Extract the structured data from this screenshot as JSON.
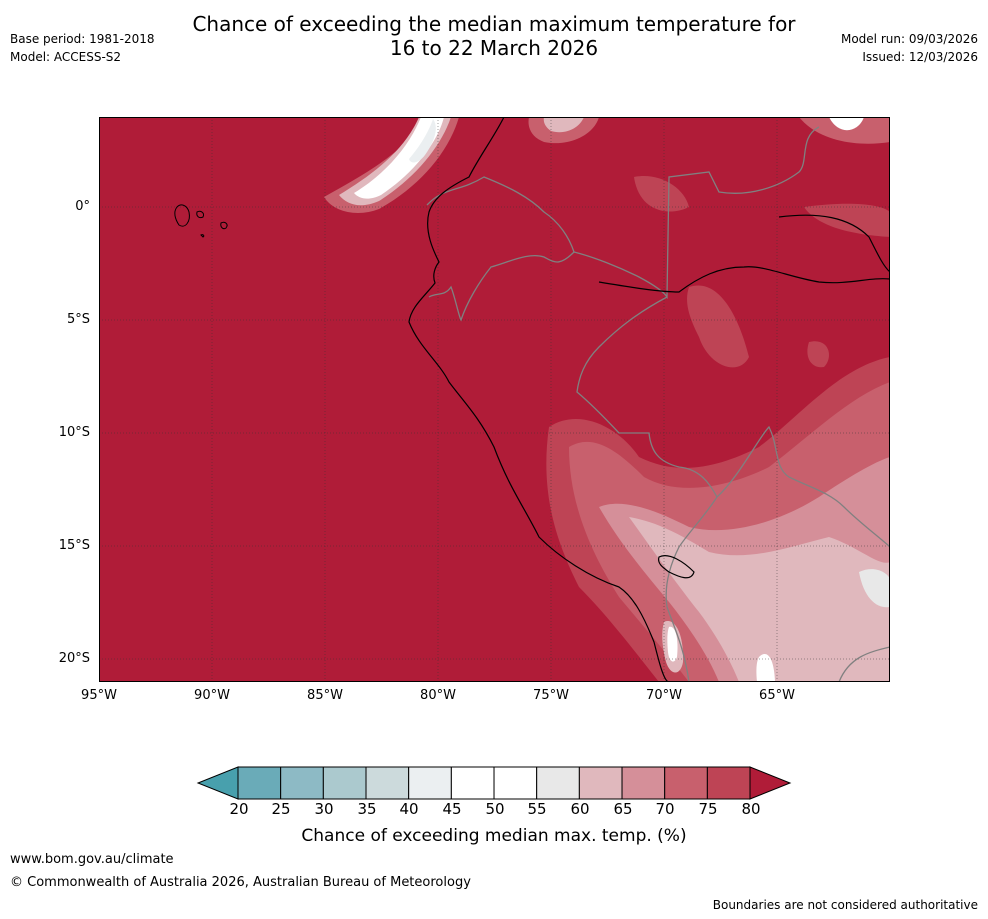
{
  "header": {
    "title_line1": "Chance of exceeding the median maximum temperature for",
    "title_line2": "16 to 22 March 2026",
    "base_period": "Base period: 1981-2018",
    "model": "Model: ACCESS-S2",
    "model_run": "Model run: 09/03/2026",
    "issued": "Issued: 12/03/2026"
  },
  "map": {
    "lat_labels": [
      "0°",
      "5°S",
      "10°S",
      "15°S",
      "20°S"
    ],
    "lon_labels": [
      "95°W",
      "90°W",
      "85°W",
      "80°W",
      "75°W",
      "70°W",
      "65°W"
    ],
    "lat_values": [
      0,
      -5,
      -10,
      -15,
      -20
    ],
    "lon_values": [
      -95,
      -90,
      -85,
      -80,
      -75,
      -70,
      -65
    ],
    "extent": {
      "lon_min": -95,
      "lon_max": -60,
      "lat_min": -21,
      "lat_max": 4
    },
    "dominant_color": "#b01c38"
  },
  "colorbar": {
    "labels": [
      "20",
      "25",
      "30",
      "35",
      "40",
      "45",
      "50",
      "55",
      "60",
      "65",
      "70",
      "75",
      "80"
    ],
    "colors": [
      "#6aabb8",
      "#8dbac5",
      "#abc9ce",
      "#ccdadc",
      "#ebeff1",
      "#ffffff",
      "#ffffff",
      "#e8e8e8",
      "#e0b8bd",
      "#d58f99",
      "#c8606d",
      "#be4455"
    ],
    "low_extend_color": "#48a0ad",
    "high_extend_color": "#b01c38",
    "title": "Chance of exceeding median max. temp. (%)"
  },
  "footer": {
    "website": "www.bom.gov.au/climate",
    "copyright": "© Commonwealth of Australia 2026, Australian Bureau of Meteorology",
    "disclaimer": "Boundaries are not considered authoritative"
  }
}
